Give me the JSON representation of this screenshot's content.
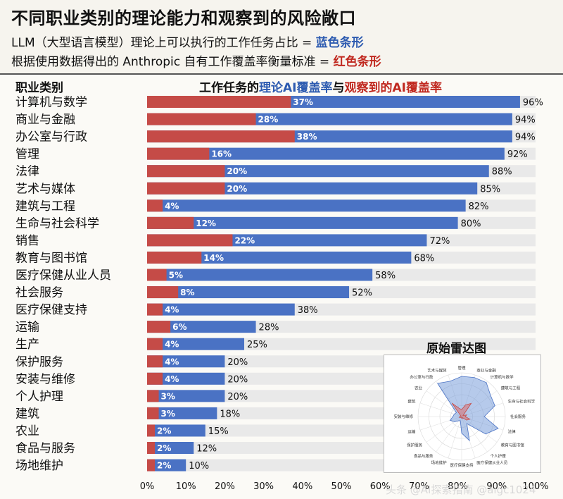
{
  "header": {
    "title": "不同职业类别的理论能力和观察到的风险敞口",
    "line1_prefix": "LLM（大型语言模型）理论上可以执行的工作任务占比 = ",
    "line1_highlight": "蓝色条形",
    "line2_prefix": "根据使用数据得出的 Anthropic 自有工作覆盖率衡量标准 = ",
    "line2_highlight": "红色条形"
  },
  "chart_data": {
    "type": "bar",
    "orientation": "horizontal",
    "category_axis_title": "职业类别",
    "title_parts": [
      "工作任务的",
      "理论AI覆盖率",
      "与",
      "观察到的AI覆盖率"
    ],
    "categories": [
      "计算机与数学",
      "商业与金融",
      "办公室与行政",
      "管理",
      "法律",
      "艺术与媒体",
      "建筑与工程",
      "生命与社会科学",
      "销售",
      "教育与图书馆",
      "医疗保健从业人员",
      "社会服务",
      "医疗保健支持",
      "运输",
      "生产",
      "保护服务",
      "安装与维修",
      "个人护理",
      "建筑",
      "农业",
      "食品与服务",
      "场地维护"
    ],
    "series": [
      {
        "name": "理论AI覆盖率",
        "color": "#4a72c4",
        "values": [
          96,
          94,
          94,
          92,
          88,
          85,
          82,
          80,
          72,
          68,
          58,
          52,
          38,
          28,
          25,
          20,
          20,
          20,
          18,
          15,
          12,
          10
        ]
      },
      {
        "name": "观察到的AI覆盖率",
        "color": "#c54b47",
        "values": [
          37,
          28,
          38,
          16,
          20,
          20,
          4,
          12,
          22,
          14,
          5,
          8,
          4,
          6,
          4,
          4,
          4,
          3,
          3,
          2,
          2,
          2
        ]
      }
    ],
    "x_ticks": [
      "0%",
      "10%",
      "20%",
      "30%",
      "40%",
      "50%",
      "60%",
      "70%",
      "80%",
      "90%",
      "100%"
    ],
    "xlim": [
      0,
      100
    ],
    "grid": false
  },
  "radar": {
    "title": "原始雷达图",
    "labels": [
      "管理",
      "商业与金融",
      "计算机与数学",
      "建筑与工程",
      "生命与社会科学",
      "社会服务",
      "法律",
      "教育与图书馆",
      "个人护理",
      "医疗保健从业人员",
      "医疗保健支持",
      "场地维护",
      "食品与服务",
      "保护服务",
      "运输",
      "安装与维修",
      "建筑",
      "农业",
      "办公室与行政",
      "艺术与媒体"
    ],
    "theoretical": [
      92,
      94,
      96,
      82,
      80,
      52,
      88,
      68,
      20,
      58,
      38,
      10,
      12,
      20,
      28,
      20,
      18,
      15,
      94,
      85
    ],
    "observed": [
      16,
      28,
      37,
      4,
      12,
      8,
      20,
      14,
      3,
      5,
      4,
      2,
      2,
      4,
      6,
      4,
      3,
      2,
      38,
      20
    ]
  },
  "watermark": "头条 @AI探索指南 @aigc1024"
}
